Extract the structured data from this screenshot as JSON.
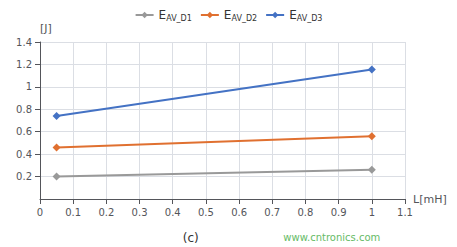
{
  "chart_data": {
    "type": "line",
    "xlabel": "L[mH]",
    "ylabel": "[J]",
    "caption": "(c)",
    "watermark": "www.cntronics.com",
    "x": [
      0.05,
      1.0
    ],
    "series": [
      {
        "name": "EAV_D1",
        "color": "#999999",
        "values": [
          0.2,
          0.26
        ]
      },
      {
        "name": "EAV_D2",
        "color": "#E07030",
        "values": [
          0.46,
          0.56
        ]
      },
      {
        "name": "EAV_D3",
        "color": "#4472C4",
        "values": [
          0.74,
          1.155
        ]
      }
    ],
    "marker": "diamond",
    "xlim": [
      0,
      1.1
    ],
    "ylim": [
      0,
      1.4
    ],
    "xticks": [
      0.0,
      0.1,
      0.2,
      0.3,
      0.4,
      0.5,
      0.6,
      0.7,
      0.8,
      0.9,
      1.0,
      1.1
    ],
    "yticks": [
      0.2,
      0.4,
      0.6,
      0.8,
      1.0,
      1.2,
      1.4
    ],
    "grid": true,
    "legend": "top"
  }
}
